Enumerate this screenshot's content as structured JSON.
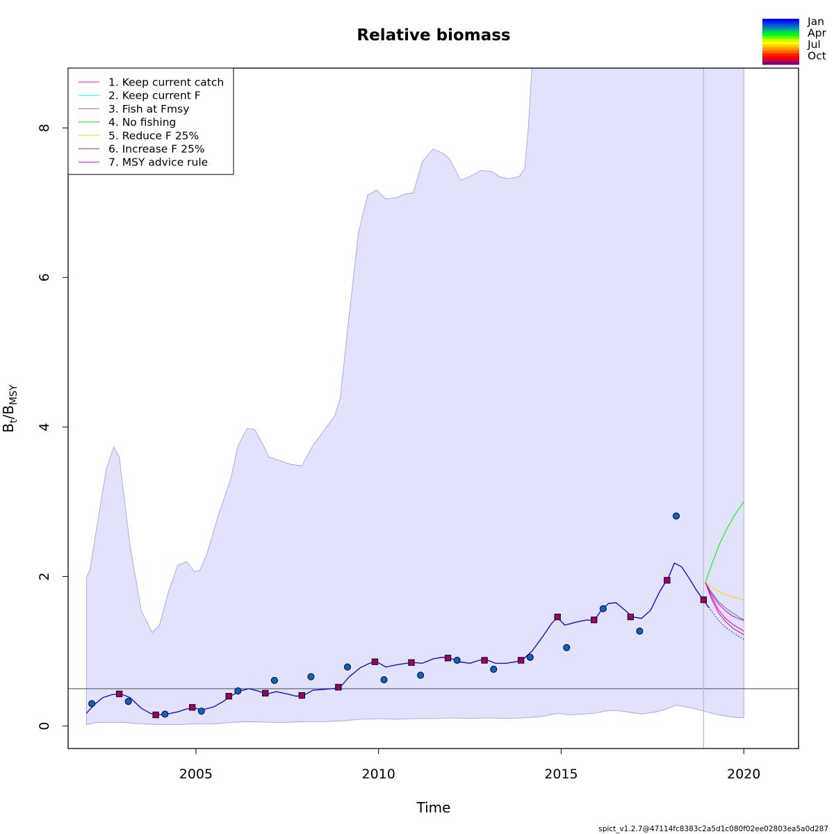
{
  "chart_data": {
    "type": "line",
    "title": "Relative biomass",
    "xlabel": "Time",
    "ylabel": "Bt/BMSY",
    "ylabel_main": "B",
    "ylabel_sub1": "t",
    "ylabel_slash": "/B",
    "ylabel_sub2": "MSY",
    "xlim": [
      2001.5,
      2021.5
    ],
    "ylim": [
      -0.3,
      8.8
    ],
    "xticks": [
      2005,
      2010,
      2015,
      2020
    ],
    "xtick_labels": [
      "2005",
      "2010",
      "2015",
      "2020"
    ],
    "yticks": [
      0,
      2,
      4,
      6,
      8
    ],
    "ytick_labels": [
      "0",
      "2",
      "4",
      "6",
      "8"
    ],
    "reference_line": 0.5,
    "forecast_start": 2018.9,
    "grid": false,
    "legend_position": "top-left",
    "ci_upper": [
      [
        2002.0,
        1.98
      ],
      [
        2002.1,
        2.1
      ],
      [
        2002.3,
        2.7
      ],
      [
        2002.55,
        3.45
      ],
      [
        2002.75,
        3.73
      ],
      [
        2002.9,
        3.6
      ],
      [
        2003.2,
        2.4
      ],
      [
        2003.5,
        1.55
      ],
      [
        2003.8,
        1.25
      ],
      [
        2004.0,
        1.35
      ],
      [
        2004.25,
        1.8
      ],
      [
        2004.5,
        2.15
      ],
      [
        2004.75,
        2.2
      ],
      [
        2004.95,
        2.07
      ],
      [
        2005.1,
        2.08
      ],
      [
        2005.3,
        2.3
      ],
      [
        2005.6,
        2.8
      ],
      [
        2005.95,
        3.3
      ],
      [
        2006.15,
        3.75
      ],
      [
        2006.4,
        3.98
      ],
      [
        2006.6,
        3.97
      ],
      [
        2006.8,
        3.8
      ],
      [
        2007.0,
        3.6
      ],
      [
        2007.3,
        3.55
      ],
      [
        2007.6,
        3.5
      ],
      [
        2007.9,
        3.48
      ],
      [
        2008.2,
        3.75
      ],
      [
        2008.5,
        3.95
      ],
      [
        2008.8,
        4.15
      ],
      [
        2008.95,
        4.38
      ],
      [
        2009.15,
        5.3
      ],
      [
        2009.45,
        6.6
      ],
      [
        2009.7,
        7.1
      ],
      [
        2009.95,
        7.17
      ],
      [
        2010.2,
        7.05
      ],
      [
        2010.5,
        7.07
      ],
      [
        2010.75,
        7.12
      ],
      [
        2010.95,
        7.13
      ],
      [
        2011.2,
        7.55
      ],
      [
        2011.5,
        7.72
      ],
      [
        2011.8,
        7.65
      ],
      [
        2011.95,
        7.58
      ],
      [
        2012.25,
        7.3
      ],
      [
        2012.5,
        7.35
      ],
      [
        2012.8,
        7.43
      ],
      [
        2013.1,
        7.42
      ],
      [
        2013.3,
        7.35
      ],
      [
        2013.55,
        7.32
      ],
      [
        2013.85,
        7.35
      ],
      [
        2014.0,
        7.45
      ],
      [
        2014.1,
        8.0
      ],
      [
        2014.2,
        8.8
      ],
      [
        2020.0,
        8.8
      ]
    ],
    "ci_lower": [
      [
        2002.0,
        0.02
      ],
      [
        2002.3,
        0.05
      ],
      [
        2002.7,
        0.05
      ],
      [
        2003.0,
        0.05
      ],
      [
        2003.5,
        0.03
      ],
      [
        2004.0,
        0.02
      ],
      [
        2004.5,
        0.02
      ],
      [
        2005.0,
        0.03
      ],
      [
        2005.5,
        0.03
      ],
      [
        2006.0,
        0.05
      ],
      [
        2006.5,
        0.06
      ],
      [
        2007.0,
        0.05
      ],
      [
        2007.5,
        0.05
      ],
      [
        2008.0,
        0.06
      ],
      [
        2008.5,
        0.06
      ],
      [
        2009.0,
        0.07
      ],
      [
        2009.5,
        0.09
      ],
      [
        2010.0,
        0.1
      ],
      [
        2010.5,
        0.09
      ],
      [
        2011.0,
        0.1
      ],
      [
        2011.5,
        0.1
      ],
      [
        2012.0,
        0.11
      ],
      [
        2012.5,
        0.1
      ],
      [
        2013.0,
        0.11
      ],
      [
        2013.5,
        0.1
      ],
      [
        2014.0,
        0.11
      ],
      [
        2014.5,
        0.13
      ],
      [
        2014.9,
        0.17
      ],
      [
        2015.2,
        0.15
      ],
      [
        2015.6,
        0.16
      ],
      [
        2015.9,
        0.17
      ],
      [
        2016.2,
        0.2
      ],
      [
        2016.5,
        0.21
      ],
      [
        2016.8,
        0.19
      ],
      [
        2017.2,
        0.16
      ],
      [
        2017.6,
        0.19
      ],
      [
        2017.9,
        0.23
      ],
      [
        2018.15,
        0.28
      ],
      [
        2018.5,
        0.25
      ],
      [
        2018.9,
        0.2
      ],
      [
        2019.3,
        0.15
      ],
      [
        2019.7,
        0.12
      ],
      [
        2020.0,
        0.11
      ]
    ],
    "biomass_estimate": [
      [
        2002.0,
        0.17
      ],
      [
        2002.2,
        0.28
      ],
      [
        2002.45,
        0.38
      ],
      [
        2002.7,
        0.42
      ],
      [
        2002.95,
        0.43
      ],
      [
        2003.2,
        0.38
      ],
      [
        2003.5,
        0.24
      ],
      [
        2003.75,
        0.17
      ],
      [
        2003.95,
        0.15
      ],
      [
        2004.2,
        0.16
      ],
      [
        2004.5,
        0.19
      ],
      [
        2004.75,
        0.23
      ],
      [
        2004.95,
        0.24
      ],
      [
        2005.2,
        0.22
      ],
      [
        2005.5,
        0.26
      ],
      [
        2005.75,
        0.33
      ],
      [
        2005.95,
        0.4
      ],
      [
        2006.2,
        0.47
      ],
      [
        2006.45,
        0.5
      ],
      [
        2006.7,
        0.47
      ],
      [
        2006.95,
        0.43
      ],
      [
        2007.2,
        0.46
      ],
      [
        2007.5,
        0.43
      ],
      [
        2007.75,
        0.4
      ],
      [
        2007.95,
        0.41
      ],
      [
        2008.2,
        0.48
      ],
      [
        2008.5,
        0.49
      ],
      [
        2008.75,
        0.5
      ],
      [
        2008.95,
        0.52
      ],
      [
        2009.2,
        0.66
      ],
      [
        2009.5,
        0.78
      ],
      [
        2009.75,
        0.84
      ],
      [
        2009.95,
        0.86
      ],
      [
        2010.2,
        0.79
      ],
      [
        2010.5,
        0.82
      ],
      [
        2010.75,
        0.84
      ],
      [
        2010.95,
        0.85
      ],
      [
        2011.2,
        0.84
      ],
      [
        2011.5,
        0.9
      ],
      [
        2011.75,
        0.92
      ],
      [
        2011.95,
        0.91
      ],
      [
        2012.2,
        0.86
      ],
      [
        2012.5,
        0.84
      ],
      [
        2012.75,
        0.88
      ],
      [
        2012.95,
        0.89
      ],
      [
        2013.2,
        0.84
      ],
      [
        2013.5,
        0.84
      ],
      [
        2013.75,
        0.86
      ],
      [
        2013.95,
        0.89
      ],
      [
        2014.2,
        1.0
      ],
      [
        2014.5,
        1.2
      ],
      [
        2014.75,
        1.38
      ],
      [
        2014.9,
        1.45
      ],
      [
        2015.1,
        1.35
      ],
      [
        2015.4,
        1.39
      ],
      [
        2015.7,
        1.42
      ],
      [
        2015.9,
        1.41
      ],
      [
        2016.1,
        1.55
      ],
      [
        2016.3,
        1.64
      ],
      [
        2016.5,
        1.65
      ],
      [
        2016.75,
        1.55
      ],
      [
        2016.95,
        1.46
      ],
      [
        2017.2,
        1.44
      ],
      [
        2017.45,
        1.55
      ],
      [
        2017.7,
        1.8
      ],
      [
        2017.95,
        2.0
      ],
      [
        2018.1,
        2.18
      ],
      [
        2018.3,
        2.13
      ],
      [
        2018.5,
        1.98
      ],
      [
        2018.7,
        1.82
      ],
      [
        2018.9,
        1.68
      ],
      [
        2019.05,
        1.58
      ]
    ],
    "forecast_baseline": [
      [
        2018.9,
        1.68
      ],
      [
        2019.1,
        1.55
      ],
      [
        2019.3,
        1.42
      ],
      [
        2019.5,
        1.32
      ],
      [
        2019.7,
        1.25
      ],
      [
        2019.9,
        1.19
      ],
      [
        2020.0,
        1.16
      ]
    ],
    "observations_index": [
      [
        2002.15,
        0.3
      ],
      [
        2003.15,
        0.33
      ],
      [
        2004.15,
        0.16
      ],
      [
        2005.15,
        0.2
      ],
      [
        2006.15,
        0.47
      ],
      [
        2007.15,
        0.61
      ],
      [
        2008.15,
        0.66
      ],
      [
        2009.15,
        0.79
      ],
      [
        2010.15,
        0.62
      ],
      [
        2011.15,
        0.68
      ],
      [
        2012.15,
        0.88
      ],
      [
        2013.15,
        0.76
      ],
      [
        2014.15,
        0.92
      ],
      [
        2015.15,
        1.05
      ],
      [
        2016.15,
        1.57
      ],
      [
        2017.15,
        1.27
      ],
      [
        2018.15,
        2.81
      ]
    ],
    "observations_squares": [
      [
        2002.9,
        0.43
      ],
      [
        2003.9,
        0.15
      ],
      [
        2004.9,
        0.25
      ],
      [
        2005.9,
        0.4
      ],
      [
        2006.9,
        0.44
      ],
      [
        2007.9,
        0.41
      ],
      [
        2008.9,
        0.52
      ],
      [
        2009.9,
        0.86
      ],
      [
        2010.9,
        0.85
      ],
      [
        2011.9,
        0.91
      ],
      [
        2012.9,
        0.88
      ],
      [
        2013.9,
        0.88
      ],
      [
        2014.9,
        1.46
      ],
      [
        2015.9,
        1.42
      ],
      [
        2016.9,
        1.46
      ],
      [
        2017.9,
        1.95
      ],
      [
        2018.9,
        1.69
      ]
    ],
    "series": [
      {
        "name": "1. Keep current catch",
        "color": "#ff00ff",
        "points": [
          [
            2018.95,
            1.92
          ],
          [
            2019.1,
            1.75
          ],
          [
            2019.3,
            1.56
          ],
          [
            2019.5,
            1.44
          ],
          [
            2019.7,
            1.36
          ],
          [
            2019.9,
            1.3
          ],
          [
            2020.0,
            1.27
          ]
        ]
      },
      {
        "name": "2. Keep current F",
        "color": "#00ffff",
        "points": [
          [
            2018.95,
            1.92
          ],
          [
            2019.1,
            1.8
          ],
          [
            2019.3,
            1.67
          ],
          [
            2019.5,
            1.58
          ],
          [
            2019.7,
            1.51
          ],
          [
            2019.9,
            1.45
          ],
          [
            2020.0,
            1.43
          ]
        ]
      },
      {
        "name": "3. Fish at Fmsy",
        "color": "#808080",
        "points": [
          [
            2018.95,
            1.92
          ],
          [
            2019.1,
            1.8
          ],
          [
            2019.3,
            1.67
          ],
          [
            2019.5,
            1.58
          ],
          [
            2019.7,
            1.51
          ],
          [
            2019.9,
            1.45
          ],
          [
            2020.0,
            1.42
          ]
        ]
      },
      {
        "name": "4. No fishing",
        "color": "#00ff00",
        "points": [
          [
            2018.95,
            1.92
          ],
          [
            2019.15,
            2.2
          ],
          [
            2019.35,
            2.45
          ],
          [
            2019.55,
            2.65
          ],
          [
            2019.75,
            2.82
          ],
          [
            2019.9,
            2.93
          ],
          [
            2020.0,
            3.0
          ]
        ]
      },
      {
        "name": "5. Reduce F 25%",
        "color": "#ffd700",
        "points": [
          [
            2018.95,
            1.92
          ],
          [
            2019.15,
            1.85
          ],
          [
            2019.35,
            1.79
          ],
          [
            2019.55,
            1.75
          ],
          [
            2019.75,
            1.72
          ],
          [
            2019.9,
            1.7
          ],
          [
            2020.0,
            1.69
          ]
        ]
      },
      {
        "name": "6. Increase F 25%",
        "color": "#b03060",
        "points": [
          [
            2018.95,
            1.92
          ],
          [
            2019.1,
            1.72
          ],
          [
            2019.3,
            1.52
          ],
          [
            2019.5,
            1.4
          ],
          [
            2019.7,
            1.31
          ],
          [
            2019.9,
            1.25
          ],
          [
            2020.0,
            1.22
          ]
        ]
      },
      {
        "name": "7. MSY advice rule",
        "color": "#ee00ee",
        "points": [
          [
            2018.95,
            1.92
          ],
          [
            2019.1,
            1.78
          ],
          [
            2019.3,
            1.64
          ],
          [
            2019.5,
            1.54
          ],
          [
            2019.7,
            1.47
          ],
          [
            2019.9,
            1.43
          ],
          [
            2020.0,
            1.41
          ]
        ]
      }
    ],
    "colorbar": {
      "labels": [
        "Jan",
        "Apr",
        "Jul",
        "Oct"
      ],
      "colors": [
        "#0000ff",
        "#0033ee",
        "#0066cc",
        "#009999",
        "#00cc66",
        "#00ff00",
        "#66ff00",
        "#ccff00",
        "#ffff00",
        "#ffcc00",
        "#ff9900",
        "#ff6600",
        "#ff2200",
        "#ff0000",
        "#cc0033",
        "#800080"
      ]
    },
    "footer": "spict_v1.2.7@47114fc8383c2a5d1c080f02ee02803ea5a0d287"
  }
}
